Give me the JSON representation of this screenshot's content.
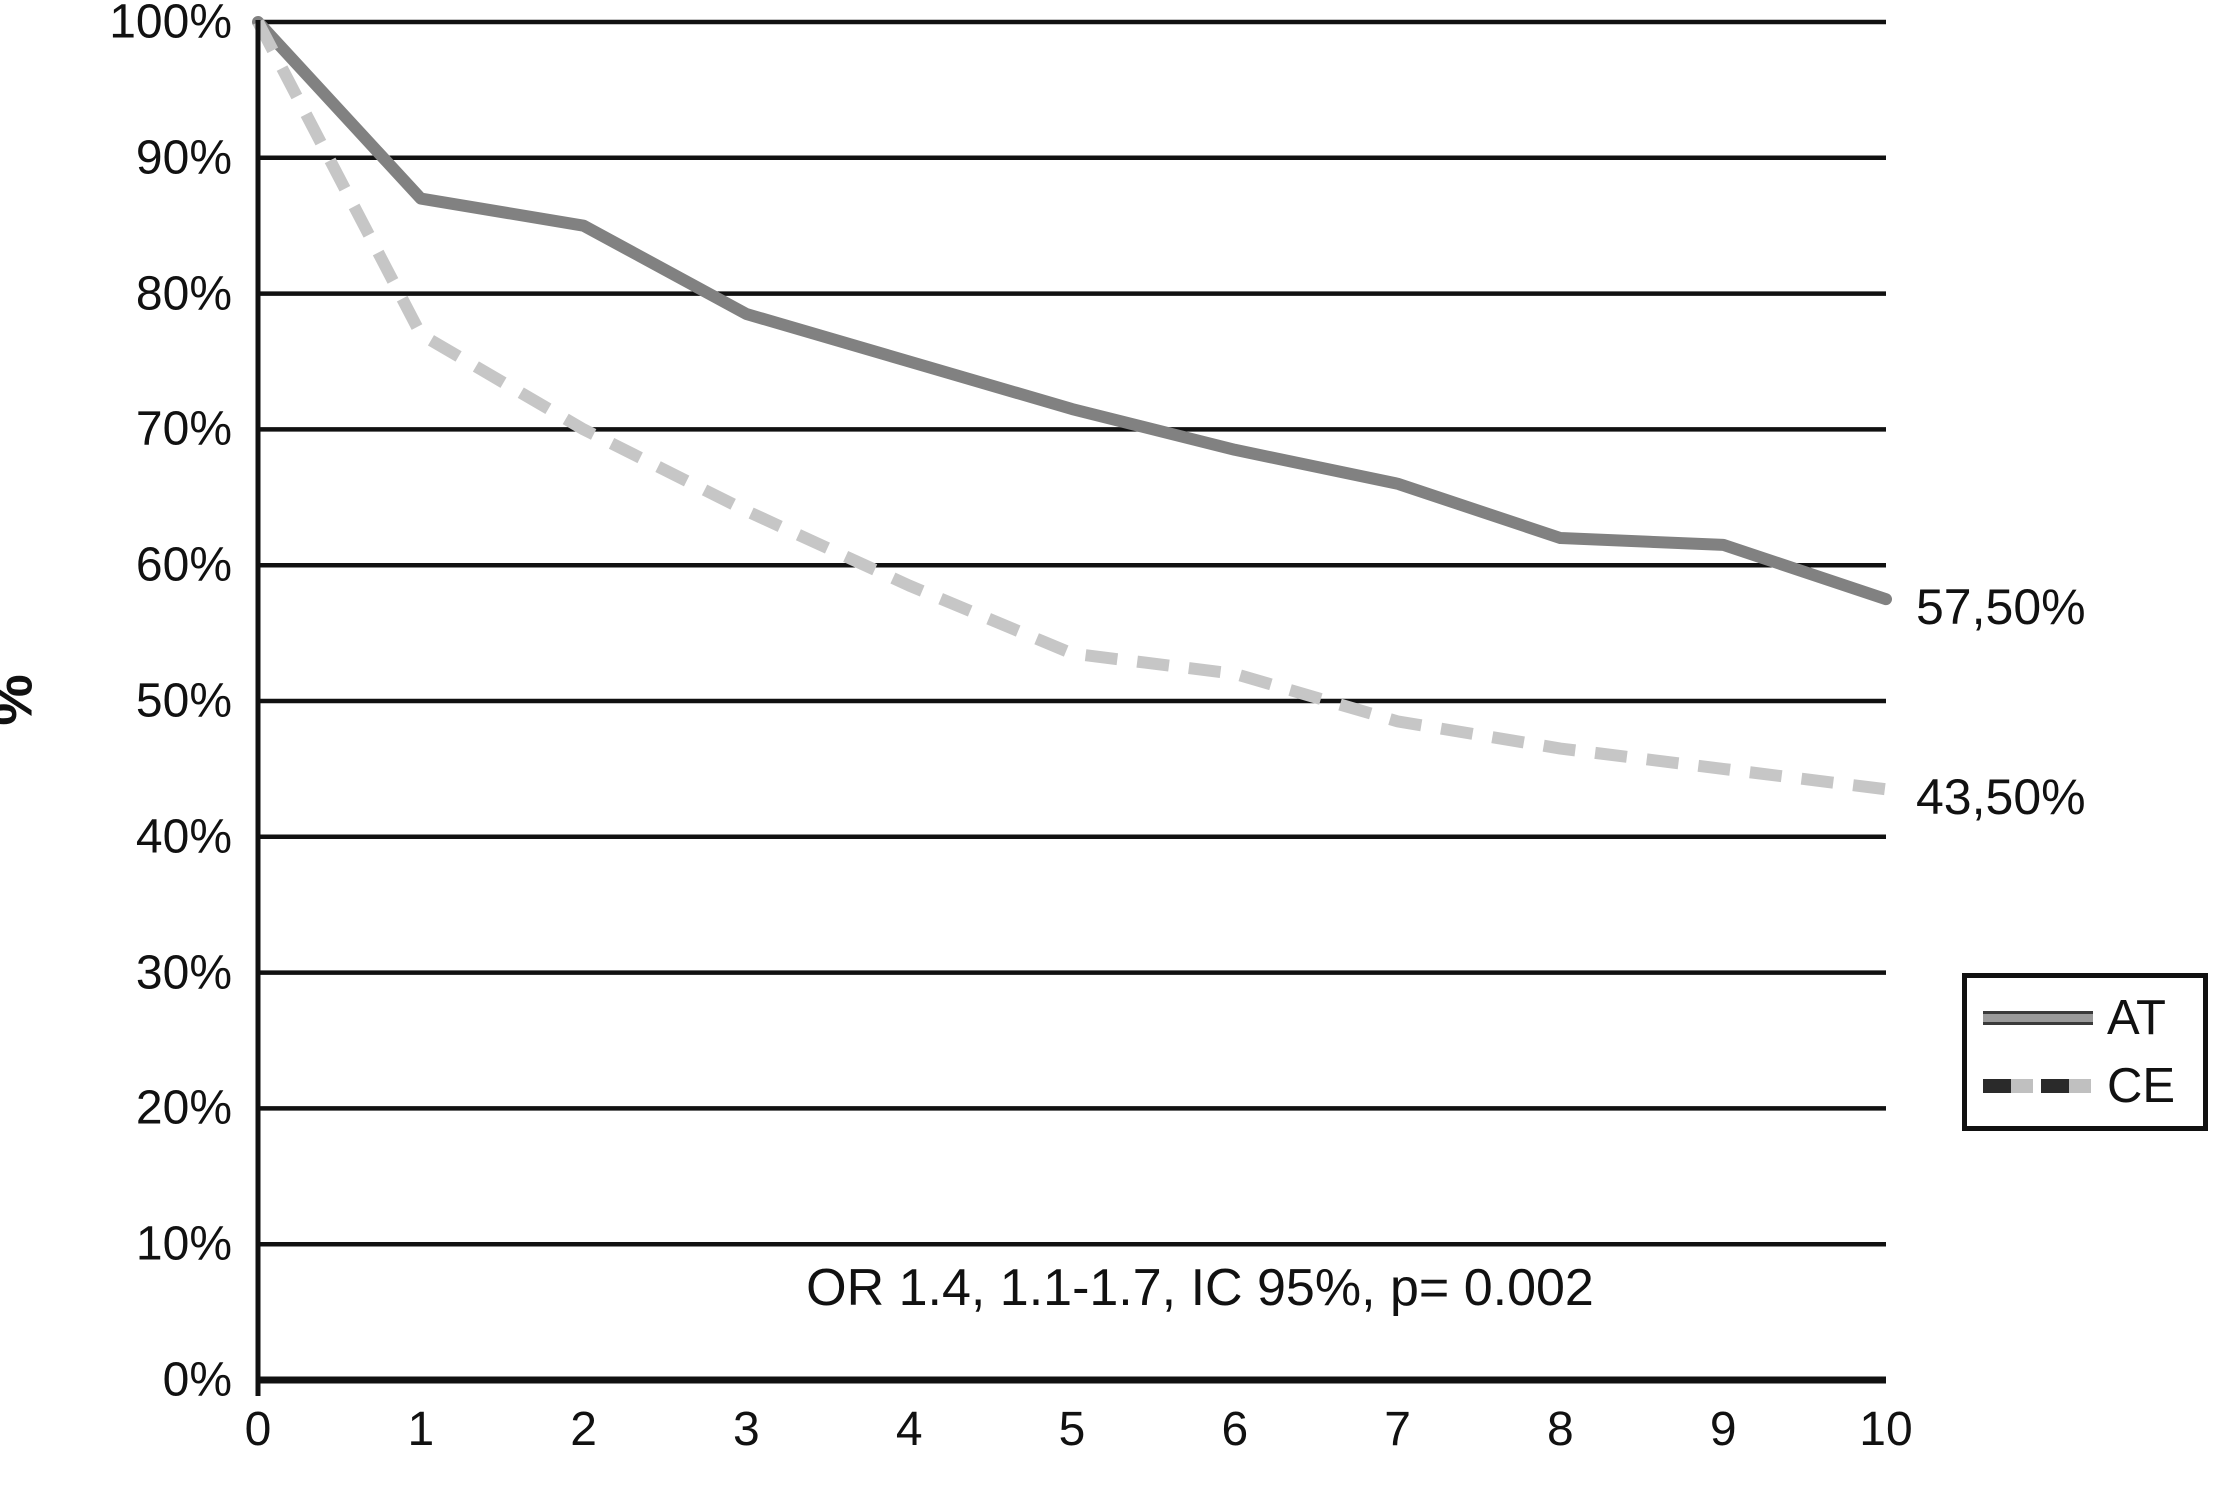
{
  "chart_data": {
    "type": "line",
    "title": "",
    "ylabel": "%",
    "xlabel": "",
    "x": [
      0,
      1,
      2,
      3,
      4,
      5,
      6,
      7,
      8,
      9,
      10
    ],
    "series": [
      {
        "name": "AT",
        "style": "solid",
        "color": "#818181",
        "values": [
          100,
          87,
          85,
          78.5,
          75,
          71.5,
          68.5,
          66,
          62,
          61.5,
          57.5
        ],
        "end_label": "57,50%",
        "end_value": 57.5
      },
      {
        "name": "CE",
        "style": "dashed",
        "color": "#c6c6c6",
        "values": [
          100,
          77,
          70,
          64,
          58.5,
          53.5,
          52,
          48.5,
          46.5,
          45,
          43.5
        ],
        "end_label": "43,50%",
        "end_value": 43.5
      }
    ],
    "y_ticks": [
      "100%",
      "90%",
      "80%",
      "70%",
      "60%",
      "50%",
      "40%",
      "30%",
      "20%",
      "10%",
      "0%"
    ],
    "y_tick_values": [
      100,
      90,
      80,
      70,
      60,
      50,
      40,
      30,
      20,
      10,
      0
    ],
    "x_ticks": [
      "0",
      "1",
      "2",
      "3",
      "4",
      "5",
      "6",
      "7",
      "8",
      "9",
      "10"
    ],
    "ylim": [
      0,
      100
    ],
    "grid": "horizontal",
    "gridline_color": "#111111",
    "legend_position": "right",
    "annotation": "OR 1.4, 1.1-1.7, IC 95%, p= 0.002"
  }
}
